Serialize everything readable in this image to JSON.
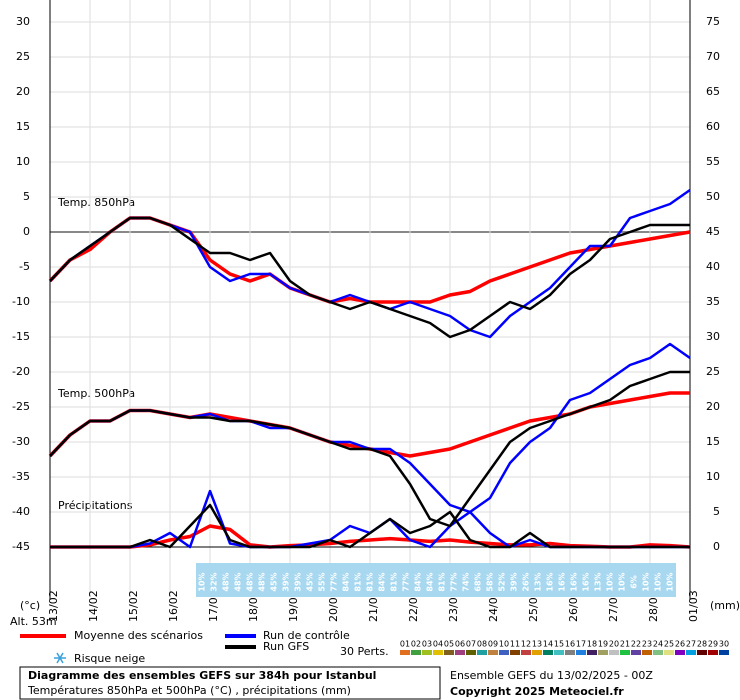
{
  "chart_data": {
    "type": "line",
    "annotations": {
      "t850": "Temp. 850hPa",
      "t500": "Temp. 500hPa",
      "precip": "Précipitations"
    },
    "y_unit": "(°c)",
    "y2_unit": "(mm)",
    "altitude": "Alt. 53m",
    "x": [
      0,
      12,
      24,
      36,
      48,
      60,
      72,
      84,
      96,
      108,
      120,
      132,
      144,
      156,
      168,
      180,
      192,
      204,
      216,
      228,
      240,
      252,
      264,
      276,
      288,
      300,
      312,
      324,
      336,
      348,
      360,
      372,
      384
    ],
    "xlim": [
      0,
      384
    ],
    "xticks": [
      {
        "value": 0,
        "label": "13/02"
      },
      {
        "value": 24,
        "label": "14/02"
      },
      {
        "value": 48,
        "label": "15/02"
      },
      {
        "value": 72,
        "label": "16/02"
      },
      {
        "value": 96,
        "label": "17/02"
      },
      {
        "value": 120,
        "label": "18/02"
      },
      {
        "value": 144,
        "label": "19/02"
      },
      {
        "value": 168,
        "label": "20/02"
      },
      {
        "value": 192,
        "label": "21/02"
      },
      {
        "value": 216,
        "label": "22/02"
      },
      {
        "value": 240,
        "label": "23/02"
      },
      {
        "value": 264,
        "label": "24/02"
      },
      {
        "value": 288,
        "label": "25/02"
      },
      {
        "value": 312,
        "label": "26/02"
      },
      {
        "value": 336,
        "label": "27/02"
      },
      {
        "value": 360,
        "label": "28/02"
      },
      {
        "value": 384,
        "label": "01/03"
      }
    ],
    "ylim": [
      -45,
      30
    ],
    "yticks": [
      -45,
      -40,
      -35,
      -30,
      -25,
      -20,
      -15,
      -10,
      -5,
      0,
      5,
      10,
      15,
      20,
      25,
      30
    ],
    "y2lim": [
      0,
      75
    ],
    "y2ticks": [
      0,
      5,
      10,
      15,
      20,
      25,
      30,
      35,
      40,
      45,
      50,
      55,
      60,
      65,
      70,
      75
    ],
    "grid": true,
    "series": [
      {
        "name": "Moyenne des scénarios",
        "color": "#ff0000",
        "t850": [
          -7,
          -4,
          -2.5,
          0,
          2,
          2,
          1,
          0,
          -4,
          -6,
          -7,
          -6,
          -8,
          -9,
          -10,
          -9.5,
          -10,
          -10,
          -10,
          -10,
          -9,
          -8.5,
          -7,
          -6,
          -5,
          -4,
          -3,
          -2.5,
          -2,
          -1.5,
          -1,
          -0.5,
          0
        ],
        "t500": [
          -32,
          -29,
          -27,
          -27,
          -25.5,
          -25.5,
          -26,
          -26.5,
          -26,
          -26.5,
          -27,
          -27.5,
          -28,
          -29,
          -30,
          -30.5,
          -31,
          -31.5,
          -32,
          -31.5,
          -31,
          -30,
          -29,
          -28,
          -27,
          -26.5,
          -26,
          -25,
          -24.5,
          -24,
          -23.5,
          -23,
          -23
        ],
        "precip": [
          0,
          0,
          0,
          0,
          0,
          0.3,
          1,
          1.5,
          3,
          2.5,
          0.3,
          0,
          0.2,
          0.3,
          0.5,
          0.8,
          1,
          1.2,
          1,
          0.8,
          1,
          0.7,
          0.5,
          0.3,
          0.3,
          0.5,
          0.2,
          0.1,
          0,
          0,
          0.3,
          0.2,
          0
        ]
      },
      {
        "name": "Run de contrôle",
        "color": "#0000ff",
        "t850": [
          -7,
          -4,
          -2,
          0,
          2,
          2,
          1,
          0,
          -5,
          -7,
          -6,
          -6,
          -8,
          -9,
          -10,
          -9,
          -10,
          -11,
          -10,
          -11,
          -12,
          -14,
          -15,
          -12,
          -10,
          -8,
          -5,
          -2,
          -2,
          2,
          3,
          4,
          6
        ],
        "t500": [
          -32,
          -29,
          -27,
          -27,
          -25.5,
          -25.5,
          -26,
          -26.5,
          -26,
          -27,
          -27,
          -28,
          -28,
          -29,
          -30,
          -30,
          -31,
          -31,
          -33,
          -36,
          -39,
          -40,
          -38,
          -33,
          -30,
          -28,
          -24,
          -23,
          -21,
          -19,
          -18,
          -16,
          -18
        ],
        "precip": [
          0,
          0,
          0,
          0,
          0,
          0.5,
          2,
          0,
          8,
          0.5,
          0,
          0,
          0,
          0.5,
          1,
          3,
          2,
          4,
          1,
          0,
          3,
          5,
          2,
          0,
          1,
          0,
          0,
          0,
          0,
          0,
          0,
          0,
          0
        ]
      },
      {
        "name": "Run GFS",
        "color": "#000000",
        "t850": [
          -7,
          -4,
          -2,
          0,
          2,
          2,
          1,
          -1,
          -3,
          -3,
          -4,
          -3,
          -7,
          -9,
          -10,
          -11,
          -10,
          -11,
          -12,
          -13,
          -15,
          -14,
          -12,
          -10,
          -11,
          -9,
          -6,
          -4,
          -1,
          0,
          1,
          1,
          1
        ],
        "t500": [
          -32,
          -29,
          -27,
          -27,
          -25.5,
          -25.5,
          -26,
          -26.5,
          -26.5,
          -27,
          -27,
          -27.5,
          -28,
          -29,
          -30,
          -31,
          -31,
          -32,
          -36,
          -41,
          -42,
          -38,
          -34,
          -30,
          -28,
          -27,
          -26,
          -25,
          -24,
          -22,
          -21,
          -20,
          -20
        ],
        "precip": [
          0,
          0,
          0,
          0,
          0,
          1,
          0,
          3,
          6,
          1,
          0,
          0,
          0,
          0,
          1,
          0,
          2,
          4,
          2,
          3,
          5,
          1,
          0,
          0,
          2,
          0,
          0,
          0,
          0,
          0,
          0,
          0,
          0
        ]
      }
    ],
    "snow_label": "Risque neige",
    "snow_risk": [
      "10%",
      "32%",
      "48%",
      "48%",
      "48%",
      "48%",
      "45%",
      "39%",
      "39%",
      "45%",
      "55%",
      "77%",
      "84%",
      "81%",
      "81%",
      "84%",
      "81%",
      "77%",
      "84%",
      "84%",
      "81%",
      "77%",
      "74%",
      "68%",
      "58%",
      "52%",
      "39%",
      "26%",
      "13%",
      "16%",
      "16%",
      "16%",
      "16%",
      "13%",
      "10%",
      "10%",
      "6%",
      "10%",
      "10%",
      "10%"
    ],
    "perts_label": "30 Perts.",
    "perts": [
      {
        "label": "01",
        "color": "#e07020"
      },
      {
        "label": "02",
        "color": "#40a040"
      },
      {
        "label": "03",
        "color": "#a0c020"
      },
      {
        "label": "04",
        "color": "#e0c000"
      },
      {
        "label": "05",
        "color": "#806020"
      },
      {
        "label": "06",
        "color": "#a04080"
      },
      {
        "label": "07",
        "color": "#606000"
      },
      {
        "label": "08",
        "color": "#20a0a0"
      },
      {
        "label": "09",
        "color": "#c08040"
      },
      {
        "label": "10",
        "color": "#4060c0"
      },
      {
        "label": "11",
        "color": "#804000"
      },
      {
        "label": "12",
        "color": "#c04040"
      },
      {
        "label": "13",
        "color": "#e0a000"
      },
      {
        "label": "14",
        "color": "#008060"
      },
      {
        "label": "15",
        "color": "#40c0c0"
      },
      {
        "label": "16",
        "color": "#808080"
      },
      {
        "label": "17",
        "color": "#2080e0"
      },
      {
        "label": "18",
        "color": "#402060"
      },
      {
        "label": "19",
        "color": "#a0a060"
      },
      {
        "label": "20",
        "color": "#c0c0c0"
      },
      {
        "label": "21",
        "color": "#20c040"
      },
      {
        "label": "22",
        "color": "#6040a0"
      },
      {
        "label": "23",
        "color": "#c06000"
      },
      {
        "label": "24",
        "color": "#80c080"
      },
      {
        "label": "25",
        "color": "#e0e080"
      },
      {
        "label": "26",
        "color": "#8000c0"
      },
      {
        "label": "27",
        "color": "#00a0e0"
      },
      {
        "label": "28",
        "color": "#600000"
      },
      {
        "label": "29",
        "color": "#a00000"
      },
      {
        "label": "30",
        "color": "#0040a0"
      }
    ],
    "footer": {
      "title": "Diagramme des ensembles GEFS sur 384h pour Istanbul",
      "subtitle": "Températures 850hPa et 500hPa (°C) , précipitations (mm)",
      "run": "Ensemble GEFS du 13/02/2025 - 00Z",
      "copyright": "Copyright 2025 Meteociel.fr"
    }
  }
}
